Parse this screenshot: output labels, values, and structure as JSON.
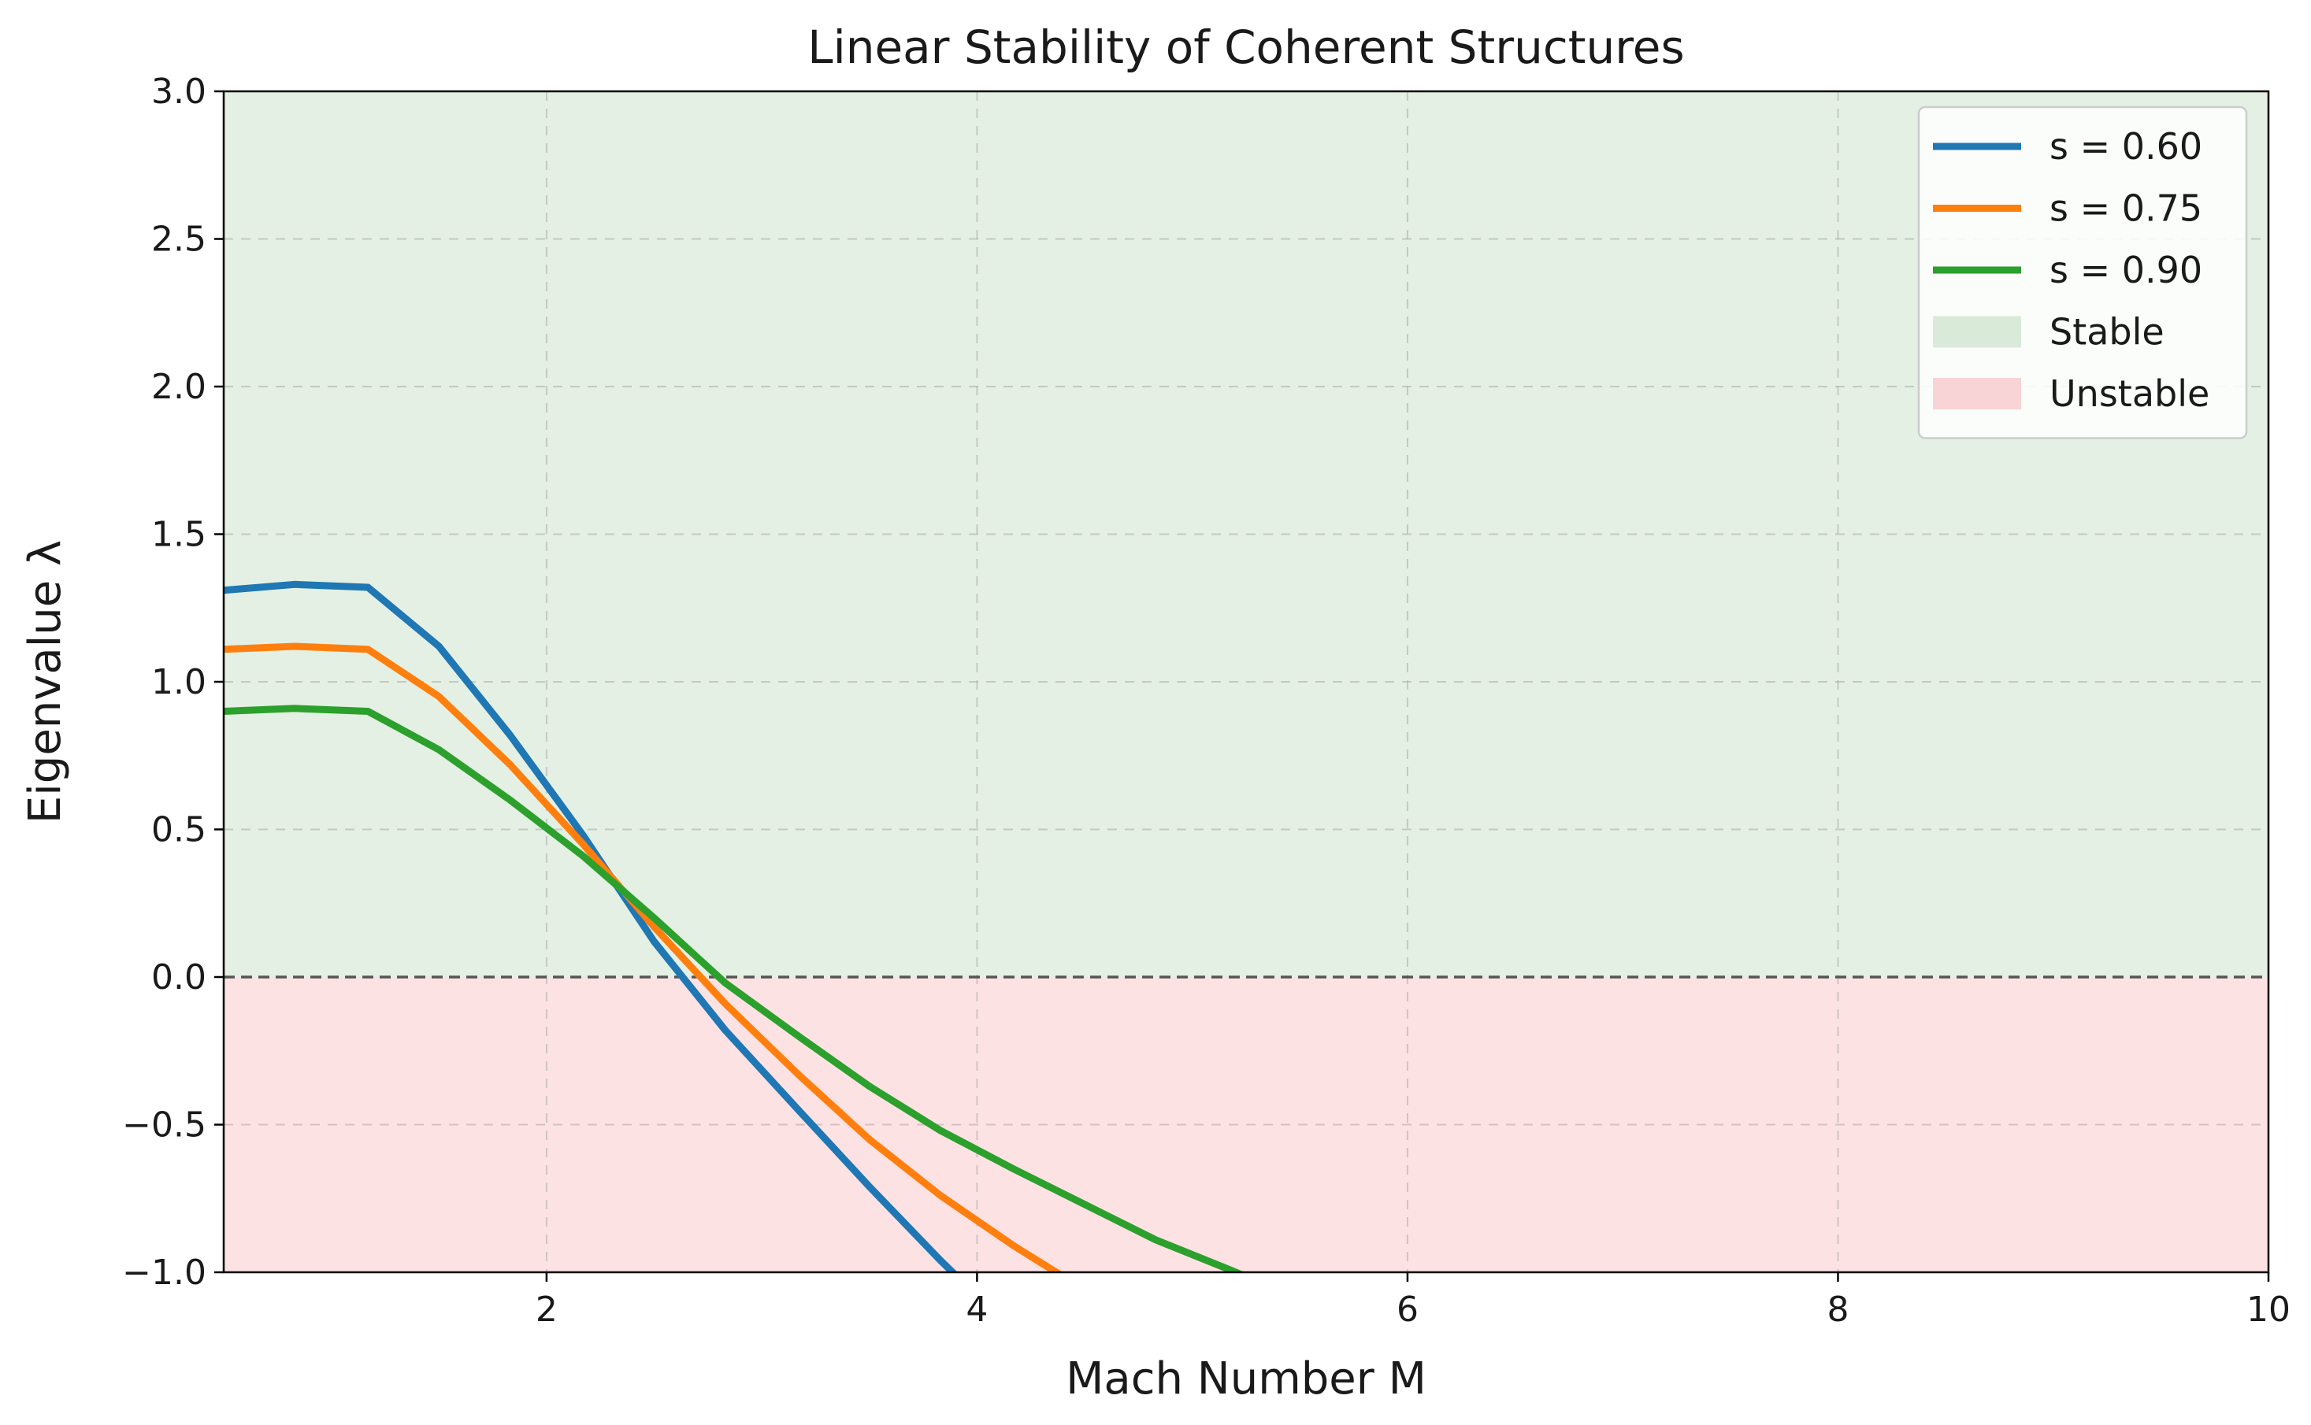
{
  "chart_data": {
    "type": "line",
    "title": "Linear Stability of Coherent Structures",
    "xlabel": "Mach Number M",
    "ylabel": "Eigenvalue λ",
    "xlim": [
      0.5,
      10
    ],
    "ylim": [
      -1.0,
      3.0
    ],
    "xticks": [
      2,
      4,
      6,
      8,
      10
    ],
    "xtick_labels": [
      "2",
      "4",
      "6",
      "8",
      "10"
    ],
    "yticks": [
      -1.0,
      -0.5,
      0.0,
      0.5,
      1.0,
      1.5,
      2.0,
      2.5,
      3.0
    ],
    "ytick_labels": [
      "−1.0",
      "−0.5",
      "0.0",
      "0.5",
      "1.0",
      "1.5",
      "2.0",
      "2.5",
      "3.0"
    ],
    "grid": true,
    "legend_position": "top-right",
    "reference_line": {
      "y": 0.0,
      "style": "dashed",
      "color": "#555555"
    },
    "regions": [
      {
        "name": "Stable",
        "y_from": 0.0,
        "y_to": 3.0,
        "color": "#e4f0e4"
      },
      {
        "name": "Unstable",
        "y_from": -1.0,
        "y_to": 0.0,
        "color": "#fde2e4"
      }
    ],
    "series": [
      {
        "name": "s = 0.60",
        "color": "#1f77b4",
        "x": [
          0.5,
          0.83,
          1.17,
          1.5,
          1.83,
          2.17,
          2.5,
          2.83,
          3.17,
          3.5,
          3.83,
          4.17
        ],
        "y": [
          1.31,
          1.33,
          1.32,
          1.12,
          0.82,
          0.48,
          0.12,
          -0.18,
          -0.45,
          -0.71,
          -0.96,
          -1.2
        ]
      },
      {
        "name": "s = 0.75",
        "color": "#ff7f0e",
        "x": [
          0.5,
          0.83,
          1.17,
          1.5,
          1.83,
          2.17,
          2.5,
          2.83,
          3.17,
          3.5,
          3.83,
          4.17,
          4.5
        ],
        "y": [
          1.11,
          1.12,
          1.11,
          0.95,
          0.72,
          0.45,
          0.17,
          -0.09,
          -0.33,
          -0.55,
          -0.74,
          -0.91,
          -1.06
        ]
      },
      {
        "name": "s = 0.90",
        "color": "#2ca02c",
        "x": [
          0.5,
          0.83,
          1.17,
          1.5,
          1.83,
          2.17,
          2.5,
          2.83,
          3.17,
          3.5,
          3.83,
          4.17,
          4.5,
          4.83,
          5.17,
          5.5
        ],
        "y": [
          0.9,
          0.91,
          0.9,
          0.77,
          0.6,
          0.41,
          0.2,
          -0.02,
          -0.2,
          -0.37,
          -0.52,
          -0.65,
          -0.77,
          -0.89,
          -0.99,
          -1.09
        ]
      }
    ],
    "legend": [
      {
        "label": "s = 0.60",
        "kind": "line",
        "color": "#1f77b4"
      },
      {
        "label": "s = 0.75",
        "kind": "line",
        "color": "#ff7f0e"
      },
      {
        "label": "s = 0.90",
        "kind": "line",
        "color": "#2ca02c"
      },
      {
        "label": "Stable",
        "kind": "patch",
        "color": "#d9ead8"
      },
      {
        "label": "Unstable",
        "kind": "patch",
        "color": "#f9d4d7"
      }
    ]
  }
}
